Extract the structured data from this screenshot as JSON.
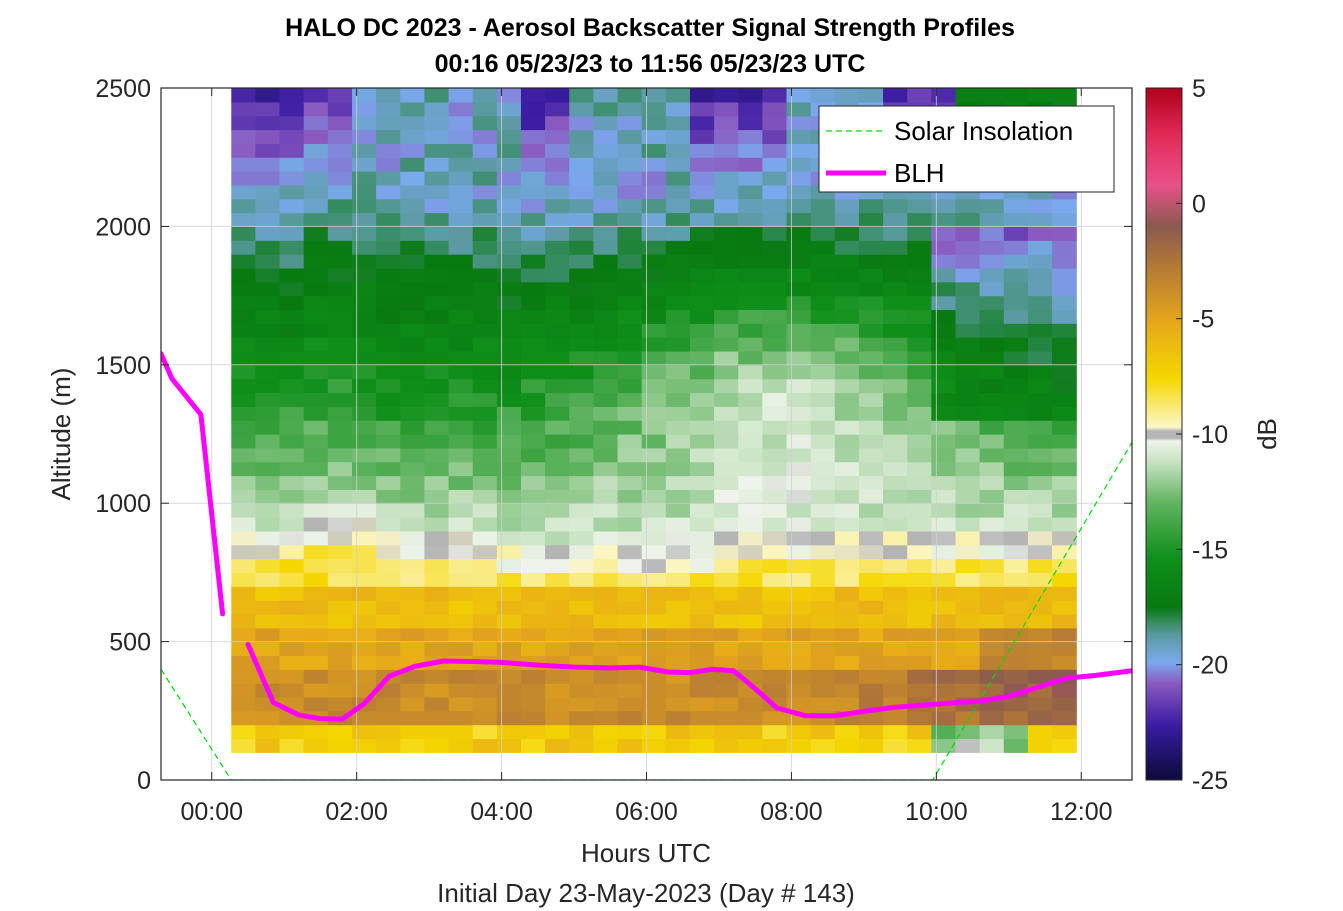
{
  "chart_data": {
    "type": "heatmap",
    "title": "HALO DC 2023 - Aerosol Backscatter Signal Strength Profiles",
    "subtitle": "00:16 05/23/23 to 11:56 05/23/23  UTC",
    "xlabel": "Hours UTC",
    "ylabel": "Altitude (m)",
    "footer": "Initial Day 23-May-2023 (Day # 143)",
    "xlim": [
      -0.7,
      12.7
    ],
    "ylim": [
      0,
      2500
    ],
    "x_ticks": [
      0,
      2,
      4,
      6,
      8,
      10,
      12
    ],
    "x_tick_labels": [
      "00:00",
      "02:00",
      "04:00",
      "06:00",
      "08:00",
      "10:00",
      "12:00"
    ],
    "y_ticks": [
      0,
      500,
      1000,
      1500,
      2000,
      2500
    ],
    "y_tick_labels": [
      "0",
      "500",
      "1000",
      "1500",
      "2000",
      "2500"
    ],
    "grid": true,
    "legend_position": "top-right",
    "colorbar": {
      "label": "dB",
      "range": [
        -25,
        5
      ],
      "ticks": [
        5,
        0,
        -5,
        -10,
        -15,
        -20,
        -25
      ],
      "tick_labels": [
        "5",
        "0",
        "-5",
        "-10",
        "-15",
        "-20",
        "-25"
      ]
    },
    "heatmap": {
      "x_range": [
        0.27,
        11.93
      ],
      "y_range": [
        100,
        2500
      ],
      "cols": 35,
      "rows": 48,
      "note": "cell values in dB derived from profile model below"
    },
    "series": [
      {
        "name": "Solar Insolation",
        "style": "dashed",
        "color": "#00dd00",
        "x": [
          -0.7,
          0.27,
          9.95,
          12.7
        ],
        "y": [
          400,
          0,
          0,
          1220
        ]
      },
      {
        "name": "BLH",
        "style": "solid",
        "color": "#ff00ff",
        "segments": [
          {
            "x": [
              -0.7,
              -0.55,
              -0.15,
              0.15
            ],
            "y": [
              1540,
              1450,
              1320,
              600
            ]
          },
          {
            "x": [
              0.5,
              0.85,
              1.2,
              1.5,
              1.8,
              2.1,
              2.45,
              2.8,
              3.2,
              3.6,
              4.0,
              4.5,
              5.0,
              5.5,
              5.9,
              6.3,
              6.6,
              6.9,
              7.2,
              7.5,
              7.8,
              8.2,
              8.6,
              9.0,
              9.4,
              9.8,
              10.2,
              10.6,
              11.0,
              11.4,
              11.8,
              12.2,
              12.7
            ],
            "y": [
              490,
              280,
              235,
              222,
              220,
              275,
              375,
              410,
              430,
              428,
              425,
              415,
              408,
              405,
              408,
              390,
              388,
              400,
              395,
              330,
              260,
              232,
              232,
              248,
              262,
              270,
              278,
              285,
              302,
              335,
              368,
              378,
              395
            ]
          }
        ]
      }
    ]
  }
}
